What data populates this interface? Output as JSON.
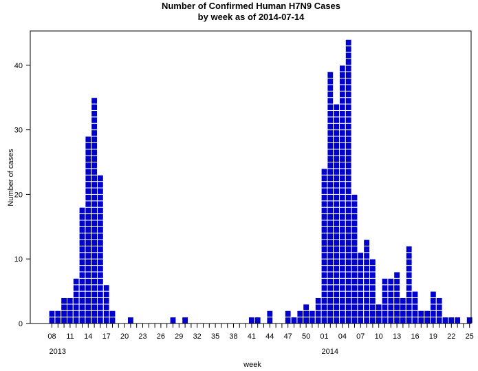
{
  "chart_data": {
    "type": "bar",
    "title": "Number of Confirmed Human H7N9 Cases",
    "subtitle": "by week as of 2014-07-14",
    "xlabel": "week",
    "ylabel": "Number of cases",
    "ylim": [
      0,
      45
    ],
    "y_ticks": [
      0,
      10,
      20,
      30,
      40
    ],
    "x_tick_labels": [
      "08",
      "11",
      "14",
      "17",
      "20",
      "23",
      "26",
      "29",
      "32",
      "35",
      "38",
      "41",
      "44",
      "47",
      "50",
      "01",
      "04",
      "07",
      "10",
      "13",
      "16",
      "19",
      "22",
      "25"
    ],
    "year_labels": [
      {
        "label": "2013",
        "week": "08"
      },
      {
        "label": "2014",
        "week": "01"
      }
    ],
    "categories": [
      "2013-08",
      "2013-09",
      "2013-10",
      "2013-11",
      "2013-12",
      "2013-13",
      "2013-14",
      "2013-15",
      "2013-16",
      "2013-17",
      "2013-18",
      "2013-19",
      "2013-20",
      "2013-21",
      "2013-22",
      "2013-23",
      "2013-24",
      "2013-25",
      "2013-26",
      "2013-27",
      "2013-28",
      "2013-29",
      "2013-30",
      "2013-31",
      "2013-32",
      "2013-33",
      "2013-34",
      "2013-35",
      "2013-36",
      "2013-37",
      "2013-38",
      "2013-39",
      "2013-40",
      "2013-41",
      "2013-42",
      "2013-43",
      "2013-44",
      "2013-45",
      "2013-46",
      "2013-47",
      "2013-48",
      "2013-49",
      "2013-50",
      "2013-51",
      "2013-52",
      "2014-01",
      "2014-02",
      "2014-03",
      "2014-04",
      "2014-05",
      "2014-06",
      "2014-07",
      "2014-08",
      "2014-09",
      "2014-10",
      "2014-11",
      "2014-12",
      "2014-13",
      "2014-14",
      "2014-15",
      "2014-16",
      "2014-17",
      "2014-18",
      "2014-19",
      "2014-20",
      "2014-21",
      "2014-22",
      "2014-23",
      "2014-24",
      "2014-25"
    ],
    "values": [
      2,
      2,
      4,
      4,
      7,
      18,
      29,
      35,
      23,
      6,
      2,
      0,
      0,
      1,
      0,
      0,
      0,
      0,
      0,
      0,
      1,
      0,
      1,
      0,
      0,
      0,
      0,
      0,
      0,
      0,
      0,
      0,
      0,
      1,
      1,
      0,
      2,
      0,
      0,
      2,
      1,
      2,
      3,
      2,
      4,
      24,
      39,
      34,
      40,
      44,
      20,
      11,
      13,
      10,
      3,
      7,
      7,
      8,
      4,
      12,
      5,
      2,
      2,
      5,
      4,
      1,
      1,
      1,
      0,
      1
    ],
    "colors": {
      "bar_fill": "#0000cc",
      "cell_border": "#ffffff",
      "axis": "#000000"
    },
    "grid": false,
    "legend": "none"
  }
}
